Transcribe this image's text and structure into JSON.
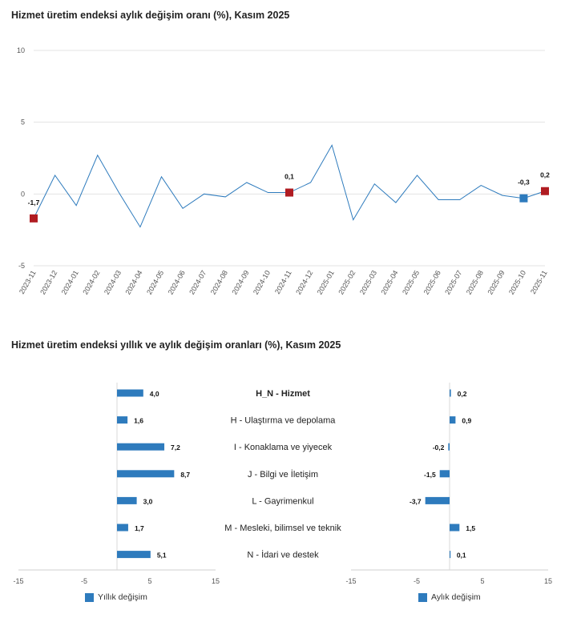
{
  "colors": {
    "line": "#2e7bbd",
    "marker_red": "#b01c22",
    "marker_blue": "#2e7bbd",
    "bar": "#2e7bbd",
    "grid": "#e3e3e3"
  },
  "chart_data": [
    {
      "type": "line",
      "title": "Hizmet üretim endeksi aylık değişim oranı (%), Kasım 2025",
      "xlabel": "",
      "ylabel": "",
      "ylim": [
        -5,
        10
      ],
      "yticks": [
        -5,
        0,
        5,
        10
      ],
      "categories": [
        "2023-11",
        "2023-12",
        "2024-01",
        "2024-02",
        "2024-03",
        "2024-04",
        "2024-05",
        "2024-06",
        "2024-07",
        "2024-08",
        "2024-09",
        "2024-10",
        "2024-11",
        "2024-12",
        "2025-01",
        "2025-02",
        "2025-03",
        "2025-04",
        "2025-05",
        "2025-06",
        "2025-07",
        "2025-08",
        "2025-09",
        "2025-10",
        "2025-11"
      ],
      "values": [
        -1.7,
        1.3,
        -0.8,
        2.7,
        0.1,
        -2.3,
        1.2,
        -1.0,
        0.0,
        -0.2,
        0.8,
        0.1,
        0.1,
        0.8,
        3.4,
        -1.8,
        0.7,
        -0.6,
        1.3,
        -0.4,
        -0.4,
        0.6,
        -0.1,
        -0.3,
        0.2
      ],
      "markers": [
        {
          "index": 0,
          "label": "-1,7",
          "color": "red"
        },
        {
          "index": 12,
          "label": "0,1",
          "color": "red"
        },
        {
          "index": 23,
          "label": "-0,3",
          "color": "blue"
        },
        {
          "index": 24,
          "label": "0,2",
          "color": "red"
        }
      ]
    },
    {
      "type": "bar",
      "orientation": "horizontal",
      "title": "Hizmet üretim endeksi yıllık ve aylık değişim oranları (%), Kasım 2025",
      "categories": [
        "H_N - Hizmet",
        "H - Ulaştırma ve depolama",
        "I - Konaklama ve yiyecek",
        "J - Bilgi ve İletişim",
        "L - Gayrimenkul",
        "M - Mesleki, bilimsel ve teknik",
        "N - İdari ve destek"
      ],
      "bold_category": "H_N - Hizmet",
      "xlim": [
        -15,
        15
      ],
      "xticks": [
        -15,
        -5,
        5,
        15
      ],
      "series": [
        {
          "name": "Yıllık değişim",
          "values": [
            4.0,
            1.6,
            7.2,
            8.7,
            3.0,
            1.7,
            5.1
          ],
          "labels": [
            "4,0",
            "1,6",
            "7,2",
            "8,7",
            "3,0",
            "1,7",
            "5,1"
          ]
        },
        {
          "name": "Aylık değişim",
          "values": [
            0.2,
            0.9,
            -0.2,
            -1.5,
            -3.7,
            1.5,
            0.1
          ],
          "labels": [
            "0,2",
            "0,9",
            "-0,2",
            "-1,5",
            "-3,7",
            "1,5",
            "0,1"
          ]
        }
      ]
    }
  ]
}
